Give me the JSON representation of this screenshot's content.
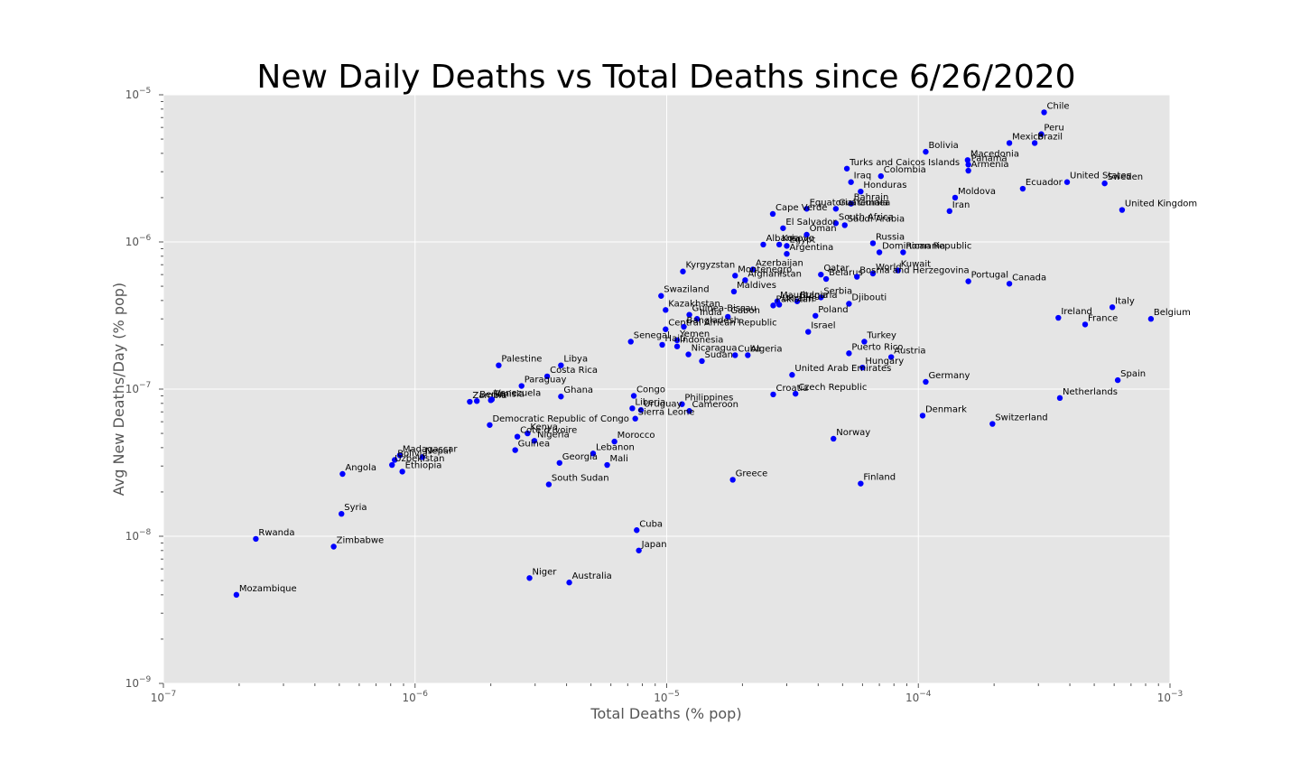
{
  "chart_data": {
    "type": "scatter",
    "title": "New Daily Deaths vs Total Deaths since 6/26/2020",
    "xlabel": "Total Deaths (% pop)",
    "ylabel": "Avg New Deaths/Day (% pop)",
    "xscale": "log",
    "yscale": "log",
    "xlim": [
      1e-07,
      0.001
    ],
    "ylim": [
      1e-09,
      1e-05
    ],
    "grid": true,
    "marker_color": "#0000ff",
    "background_color": "#e5e5e5",
    "x_ticks": [
      {
        "base": "10",
        "exp": "−7",
        "value": 1e-07
      },
      {
        "base": "10",
        "exp": "−6",
        "value": 1e-06
      },
      {
        "base": "10",
        "exp": "−5",
        "value": 1e-05
      },
      {
        "base": "10",
        "exp": "−4",
        "value": 0.0001
      },
      {
        "base": "10",
        "exp": "−3",
        "value": 0.001
      }
    ],
    "y_ticks": [
      {
        "base": "10",
        "exp": "−9",
        "value": 1e-09
      },
      {
        "base": "10",
        "exp": "−8",
        "value": 1e-08
      },
      {
        "base": "10",
        "exp": "−7",
        "value": 1e-07
      },
      {
        "base": "10",
        "exp": "−6",
        "value": 1e-06
      },
      {
        "base": "10",
        "exp": "−5",
        "value": 1e-05
      }
    ],
    "points": [
      {
        "label": "Chile",
        "x": 0.000316,
        "y": 7.6e-06
      },
      {
        "label": "Peru",
        "x": 0.000308,
        "y": 5.4e-06
      },
      {
        "label": "Mexico",
        "x": 0.00023,
        "y": 4.7e-06
      },
      {
        "label": "Brazil",
        "x": 0.00029,
        "y": 4.7e-06
      },
      {
        "label": "Bolivia",
        "x": 0.000107,
        "y": 4.1e-06
      },
      {
        "label": "Macedonia",
        "x": 0.000157,
        "y": 3.6e-06
      },
      {
        "label": "Panama",
        "x": 0.000158,
        "y": 3.35e-06
      },
      {
        "label": "Armenia",
        "x": 0.000158,
        "y": 3.05e-06
      },
      {
        "label": "Turks and Caicos Islands",
        "x": 5.2e-05,
        "y": 3.15e-06
      },
      {
        "label": "Colombia",
        "x": 7.1e-05,
        "y": 2.8e-06
      },
      {
        "label": "Iraq",
        "x": 5.4e-05,
        "y": 2.55e-06
      },
      {
        "label": "United States",
        "x": 0.00039,
        "y": 2.55e-06
      },
      {
        "label": "Sweden",
        "x": 0.00055,
        "y": 2.5e-06
      },
      {
        "label": "Ecuador",
        "x": 0.00026,
        "y": 2.3e-06
      },
      {
        "label": "Honduras",
        "x": 5.9e-05,
        "y": 2.2e-06
      },
      {
        "label": "Moldova",
        "x": 0.00014,
        "y": 2e-06
      },
      {
        "label": "Bahrain",
        "x": 5.4e-05,
        "y": 1.82e-06
      },
      {
        "label": "Equatorial Guinea",
        "x": 3.6e-05,
        "y": 1.68e-06
      },
      {
        "label": "Guatemala",
        "x": 4.7e-05,
        "y": 1.68e-06
      },
      {
        "label": "Iran",
        "x": 0.000133,
        "y": 1.62e-06
      },
      {
        "label": "United Kingdom",
        "x": 0.000645,
        "y": 1.65e-06
      },
      {
        "label": "Cape Verde",
        "x": 2.64e-05,
        "y": 1.55e-06
      },
      {
        "label": "South Africa",
        "x": 4.7e-05,
        "y": 1.34e-06
      },
      {
        "label": "Saudi Arabia",
        "x": 5.1e-05,
        "y": 1.3e-06
      },
      {
        "label": "El Salvador",
        "x": 2.9e-05,
        "y": 1.24e-06
      },
      {
        "label": "Oman",
        "x": 3.6e-05,
        "y": 1.12e-06
      },
      {
        "label": "Albania",
        "x": 2.42e-05,
        "y": 9.6e-07
      },
      {
        "label": "Kosovo",
        "x": 2.8e-05,
        "y": 9.6e-07
      },
      {
        "label": "Egypt",
        "x": 3e-05,
        "y": 9.4e-07
      },
      {
        "label": "Russia",
        "x": 6.6e-05,
        "y": 9.8e-07
      },
      {
        "label": "Argentina",
        "x": 3e-05,
        "y": 8.3e-07
      },
      {
        "label": "Dominican Republic",
        "x": 7e-05,
        "y": 8.5e-07
      },
      {
        "label": "Romania",
        "x": 8.7e-05,
        "y": 8.5e-07
      },
      {
        "label": "Kyrgyzstan",
        "x": 1.16e-05,
        "y": 6.3e-07
      },
      {
        "label": "Azerbaijan",
        "x": 2.2e-05,
        "y": 6.5e-07
      },
      {
        "label": "Montenegro",
        "x": 1.87e-05,
        "y": 5.9e-07
      },
      {
        "label": "Afghanistan",
        "x": 2.05e-05,
        "y": 5.5e-07
      },
      {
        "label": "Qatar",
        "x": 4.1e-05,
        "y": 6e-07
      },
      {
        "label": "Belarus",
        "x": 4.3e-05,
        "y": 5.6e-07
      },
      {
        "label": "World",
        "x": 6.6e-05,
        "y": 6.1e-07
      },
      {
        "label": "Kuwait",
        "x": 8.3e-05,
        "y": 6.4e-07
      },
      {
        "label": "Bosnia and Herzegovina",
        "x": 5.7e-05,
        "y": 5.8e-07
      },
      {
        "label": "Portugal",
        "x": 0.000158,
        "y": 5.4e-07
      },
      {
        "label": "Canada",
        "x": 0.00023,
        "y": 5.2e-07
      },
      {
        "label": "Maldives",
        "x": 1.85e-05,
        "y": 4.6e-07
      },
      {
        "label": "Swaziland",
        "x": 9.5e-06,
        "y": 4.3e-07
      },
      {
        "label": "Serbia",
        "x": 4.1e-05,
        "y": 4.2e-07
      },
      {
        "label": "Bulgaria",
        "x": 3.3e-05,
        "y": 3.95e-07
      },
      {
        "label": "Mauritania",
        "x": 2.75e-05,
        "y": 3.95e-07
      },
      {
        "label": "Ukraine",
        "x": 2.8e-05,
        "y": 3.75e-07
      },
      {
        "label": "Pakistan",
        "x": 2.65e-05,
        "y": 3.7e-07
      },
      {
        "label": "Djibouti",
        "x": 5.3e-05,
        "y": 3.8e-07
      },
      {
        "label": "Italy",
        "x": 0.00059,
        "y": 3.6e-07
      },
      {
        "label": "Kazakhstan",
        "x": 9.9e-06,
        "y": 3.45e-07
      },
      {
        "label": "Guinea-Bissau",
        "x": 1.23e-05,
        "y": 3.2e-07
      },
      {
        "label": "India",
        "x": 1.32e-05,
        "y": 3e-07
      },
      {
        "label": "Gabon",
        "x": 1.75e-05,
        "y": 3.1e-07
      },
      {
        "label": "Poland",
        "x": 3.9e-05,
        "y": 3.15e-07
      },
      {
        "label": "Ireland",
        "x": 0.00036,
        "y": 3.05e-07
      },
      {
        "label": "France",
        "x": 0.00046,
        "y": 2.75e-07
      },
      {
        "label": "Belgium",
        "x": 0.00084,
        "y": 3e-07
      },
      {
        "label": "Central African Republic",
        "x": 9.9e-06,
        "y": 2.55e-07
      },
      {
        "label": "Bangladesh",
        "x": 1.17e-05,
        "y": 2.65e-07
      },
      {
        "label": "Israel",
        "x": 3.65e-05,
        "y": 2.45e-07
      },
      {
        "label": "Senegal",
        "x": 7.2e-06,
        "y": 2.1e-07
      },
      {
        "label": "Yemen",
        "x": 1.1e-05,
        "y": 2.15e-07
      },
      {
        "label": "Haiti",
        "x": 9.6e-06,
        "y": 2e-07
      },
      {
        "label": "Indonesia",
        "x": 1.1e-05,
        "y": 1.95e-07
      },
      {
        "label": "Turkey",
        "x": 6.1e-05,
        "y": 2.1e-07
      },
      {
        "label": "Puerto Rico",
        "x": 5.3e-05,
        "y": 1.75e-07
      },
      {
        "label": "Nicaragua",
        "x": 1.22e-05,
        "y": 1.72e-07
      },
      {
        "label": "Sudan",
        "x": 1.38e-05,
        "y": 1.55e-07
      },
      {
        "label": "Cuba",
        "x": 1.87e-05,
        "y": 1.7e-07
      },
      {
        "label": "Algeria",
        "x": 2.1e-05,
        "y": 1.7e-07
      },
      {
        "label": "Austria",
        "x": 7.8e-05,
        "y": 1.65e-07
      },
      {
        "label": "Hungary",
        "x": 6e-05,
        "y": 1.4e-07
      },
      {
        "label": "Palestine",
        "x": 2.15e-06,
        "y": 1.45e-07
      },
      {
        "label": "Libya",
        "x": 3.8e-06,
        "y": 1.45e-07
      },
      {
        "label": "Costa Rica",
        "x": 3.35e-06,
        "y": 1.22e-07
      },
      {
        "label": "United Arab Emirates",
        "x": 3.15e-05,
        "y": 1.25e-07
      },
      {
        "label": "Germany",
        "x": 0.000107,
        "y": 1.12e-07
      },
      {
        "label": "Spain",
        "x": 0.00062,
        "y": 1.15e-07
      },
      {
        "label": "Paraguay",
        "x": 2.65e-06,
        "y": 1.05e-07
      },
      {
        "label": "Ghana",
        "x": 3.8e-06,
        "y": 8.9e-08
      },
      {
        "label": "Congo",
        "x": 7.4e-06,
        "y": 9e-08
      },
      {
        "label": "Croatia",
        "x": 2.65e-05,
        "y": 9.2e-08
      },
      {
        "label": "Czech Republic",
        "x": 3.25e-05,
        "y": 9.3e-08
      },
      {
        "label": "Netherlands",
        "x": 0.000365,
        "y": 8.7e-08
      },
      {
        "label": "Zambia",
        "x": 1.65e-06,
        "y": 8.2e-08
      },
      {
        "label": "Benin",
        "x": 1.76e-06,
        "y": 8.3e-08
      },
      {
        "label": "Tunisia",
        "x": 2e-06,
        "y": 8.4e-08
      },
      {
        "label": "Venezuela",
        "x": 2.02e-06,
        "y": 8.5e-08
      },
      {
        "label": "Philippines",
        "x": 1.15e-05,
        "y": 7.9e-08
      },
      {
        "label": "Liberia",
        "x": 7.3e-06,
        "y": 7.4e-08
      },
      {
        "label": "Uruguay",
        "x": 7.9e-06,
        "y": 7.2e-08
      },
      {
        "label": "Cameroon",
        "x": 1.23e-05,
        "y": 7.1e-08
      },
      {
        "label": "Sierra Leone",
        "x": 7.5e-06,
        "y": 6.3e-08
      },
      {
        "label": "Denmark",
        "x": 0.000104,
        "y": 6.6e-08
      },
      {
        "label": "Switzerland",
        "x": 0.000197,
        "y": 5.8e-08
      },
      {
        "label": "Democratic Republic of Congo",
        "x": 1.98e-06,
        "y": 5.7e-08
      },
      {
        "label": "Kenya",
        "x": 2.8e-06,
        "y": 5e-08
      },
      {
        "label": "Cote d'Ivoire",
        "x": 2.55e-06,
        "y": 4.75e-08
      },
      {
        "label": "Nigeria",
        "x": 2.98e-06,
        "y": 4.45e-08
      },
      {
        "label": "Morocco",
        "x": 6.2e-06,
        "y": 4.4e-08
      },
      {
        "label": "Norway",
        "x": 4.6e-05,
        "y": 4.6e-08
      },
      {
        "label": "Guinea",
        "x": 2.5e-06,
        "y": 3.85e-08
      },
      {
        "label": "Lebanon",
        "x": 5.1e-06,
        "y": 3.65e-08
      },
      {
        "label": "Madagascar",
        "x": 8.7e-07,
        "y": 3.55e-08
      },
      {
        "label": "Nepal",
        "x": 1.07e-06,
        "y": 3.45e-08
      },
      {
        "label": "Bolivia Plain",
        "x": 8.3e-07,
        "y": 3.3e-08
      },
      {
        "label": "Uzbekistan",
        "x": 8.1e-07,
        "y": 3.05e-08
      },
      {
        "label": "Georgia",
        "x": 3.75e-06,
        "y": 3.15e-08
      },
      {
        "label": "Mali",
        "x": 5.8e-06,
        "y": 3.05e-08
      },
      {
        "label": "Ethiopia",
        "x": 8.9e-07,
        "y": 2.75e-08
      },
      {
        "label": "Angola",
        "x": 5.15e-07,
        "y": 2.65e-08
      },
      {
        "label": "Greece",
        "x": 1.83e-05,
        "y": 2.42e-08
      },
      {
        "label": "South Sudan",
        "x": 3.4e-06,
        "y": 2.25e-08
      },
      {
        "label": "Finland",
        "x": 5.9e-05,
        "y": 2.28e-08
      },
      {
        "label": "Syria",
        "x": 5.1e-07,
        "y": 1.42e-08
      },
      {
        "label": "Cuba",
        "x": 7.6e-06,
        "y": 1.1e-08
      },
      {
        "label": "Rwanda",
        "x": 2.33e-07,
        "y": 9.6e-09
      },
      {
        "label": "Zimbabwe",
        "x": 4.75e-07,
        "y": 8.5e-09
      },
      {
        "label": "Japan",
        "x": 7.75e-06,
        "y": 8e-09
      },
      {
        "label": "Niger",
        "x": 2.85e-06,
        "y": 5.2e-09
      },
      {
        "label": "Australia",
        "x": 4.1e-06,
        "y": 4.85e-09
      },
      {
        "label": "Mozambique",
        "x": 1.95e-07,
        "y": 4e-09
      }
    ]
  }
}
